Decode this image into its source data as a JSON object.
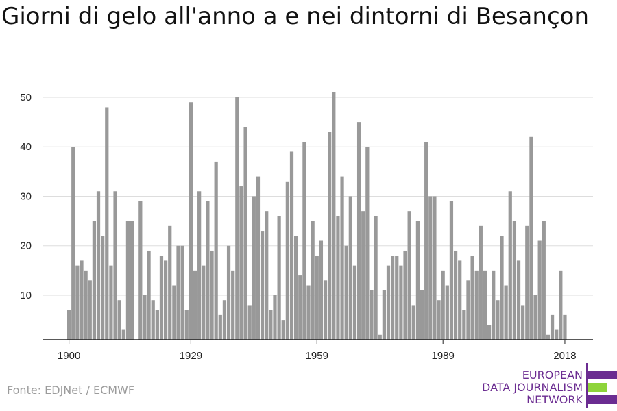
{
  "chart_data": {
    "type": "bar",
    "title": "Giorni di gelo all'anno a e nei dintorni di Besançon",
    "xlabel": "",
    "ylabel": "",
    "x_start": 1900,
    "x_end": 2018,
    "values": [
      7,
      40,
      16,
      17,
      15,
      13,
      25,
      31,
      22,
      48,
      16,
      31,
      9,
      3,
      25,
      25,
      0,
      29,
      10,
      19,
      9,
      7,
      18,
      17,
      24,
      12,
      20,
      20,
      7,
      49,
      15,
      31,
      16,
      29,
      19,
      37,
      6,
      9,
      20,
      15,
      50,
      32,
      44,
      8,
      30,
      34,
      23,
      27,
      7,
      10,
      26,
      5,
      33,
      39,
      22,
      14,
      41,
      12,
      25,
      18,
      21,
      13,
      43,
      51,
      26,
      34,
      20,
      30,
      16,
      45,
      27,
      40,
      11,
      26,
      2,
      11,
      16,
      18,
      18,
      16,
      19,
      27,
      8,
      25,
      11,
      41,
      30,
      30,
      9,
      15,
      12,
      29,
      19,
      17,
      7,
      13,
      18,
      15,
      24,
      15,
      4,
      15,
      9,
      22,
      12,
      31,
      25,
      17,
      8,
      24,
      42,
      10,
      21,
      25,
      2,
      6,
      3,
      15,
      6
    ],
    "yticks": [
      10,
      20,
      30,
      40,
      50
    ],
    "ylim": [
      1,
      52
    ],
    "xticks": [
      1900,
      1929,
      1959,
      1989,
      2018
    ],
    "grid": true,
    "bar_color": "#999999"
  },
  "source": "Fonte: EDJNet / ECMWF",
  "logo": {
    "lines": [
      "EUROPEAN",
      "DATA JOURNALISM",
      "NETWORK"
    ],
    "colors": [
      "#6b2c91",
      "#8ed43a",
      "#6b2c91"
    ]
  }
}
